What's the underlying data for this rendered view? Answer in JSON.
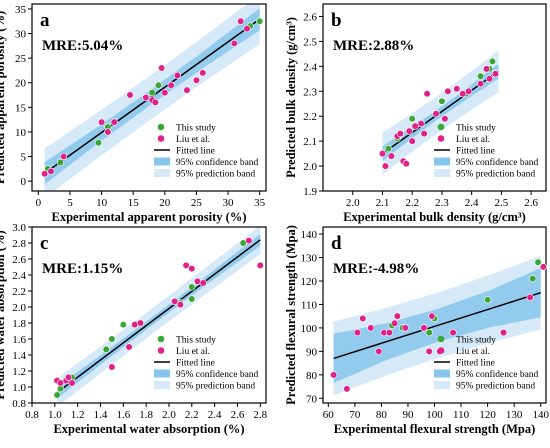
{
  "colors": {
    "this_study": "#3aa636",
    "liu": "#e0218a",
    "fit": "#000000",
    "confidence": "#86c5ec",
    "prediction": "#d6e9f8"
  },
  "legend_labels": [
    "This study",
    "Liu et al.",
    "Fitted line",
    "95% confidence band",
    "95% prediction band"
  ],
  "chart_data": [
    {
      "panel": "a",
      "type": "scatter",
      "mre": "MRE:5.04%",
      "xlabel": "Experimental apparent porosity (%)",
      "ylabel": "Predicted apparent porosity (%)",
      "xlim": [
        -1,
        36
      ],
      "ylim": [
        -2,
        36
      ],
      "xticks": [
        0,
        5,
        10,
        15,
        20,
        25,
        30,
        35
      ],
      "yticks": [
        0,
        5,
        10,
        15,
        20,
        25,
        30,
        35
      ],
      "fit": [
        [
          1,
          1.6
        ],
        [
          35,
          32.9
        ]
      ],
      "confidence_halfwidth": 1.5,
      "prediction_halfwidth": 4.5,
      "series": [
        {
          "name": "This study",
          "color_key": "this_study",
          "points": [
            [
              1.5,
              2.5
            ],
            [
              3.5,
              3.8
            ],
            [
              9.5,
              7.8
            ],
            [
              11,
              11
            ],
            [
              18,
              18
            ],
            [
              19,
              19.5
            ],
            [
              33.5,
              31.5
            ],
            [
              35,
              32.5
            ]
          ]
        },
        {
          "name": "Liu et al.",
          "color_key": "liu",
          "points": [
            [
              1,
              1.5
            ],
            [
              2,
              2
            ],
            [
              4,
              5
            ],
            [
              10,
              12
            ],
            [
              11,
              10
            ],
            [
              12,
              12
            ],
            [
              14.5,
              17.5
            ],
            [
              17,
              17
            ],
            [
              18,
              16.5
            ],
            [
              18.5,
              16
            ],
            [
              19.5,
              23
            ],
            [
              20,
              18
            ],
            [
              21,
              19.5
            ],
            [
              22,
              21.5
            ],
            [
              23.5,
              18.5
            ],
            [
              25,
              20.5
            ],
            [
              26,
              22
            ],
            [
              31,
              28
            ],
            [
              32,
              32.5
            ],
            [
              33,
              31
            ]
          ]
        }
      ]
    },
    {
      "panel": "b",
      "type": "scatter",
      "mre": "MRE:2.88%",
      "xlabel": "Experimental bulk density (g/cm³)",
      "ylabel": "Predicted bulk density (g/cm³)",
      "xlim": [
        1.9,
        2.65
      ],
      "ylim": [
        1.9,
        2.65
      ],
      "xticks": [
        "2.0",
        "2.1",
        "2.2",
        "2.3",
        "2.4",
        "2.5",
        "2.6"
      ],
      "yticks": [
        "1.9",
        "2.0",
        "2.1",
        "2.2",
        "2.3",
        "2.4",
        "2.5",
        "2.6"
      ],
      "fit": [
        [
          2.1,
          2.05
        ],
        [
          2.49,
          2.38
        ]
      ],
      "confidence_halfwidth": 0.02,
      "prediction_halfwidth": 0.075,
      "series": [
        {
          "name": "This study",
          "color_key": "this_study",
          "points": [
            [
              2.12,
              2.07
            ],
            [
              2.15,
              2.11
            ],
            [
              2.2,
              2.19
            ],
            [
              2.3,
              2.26
            ],
            [
              2.38,
              2.29
            ],
            [
              2.43,
              2.36
            ],
            [
              2.46,
              2.39
            ],
            [
              2.47,
              2.42
            ]
          ]
        },
        {
          "name": "Liu et al.",
          "color_key": "liu",
          "points": [
            [
              2.1,
              2.05
            ],
            [
              2.11,
              2.0
            ],
            [
              2.13,
              2.04
            ],
            [
              2.15,
              2.12
            ],
            [
              2.16,
              2.13
            ],
            [
              2.17,
              2.02
            ],
            [
              2.18,
              2.01
            ],
            [
              2.19,
              2.14
            ],
            [
              2.2,
              2.1
            ],
            [
              2.21,
              2.16
            ],
            [
              2.23,
              2.17
            ],
            [
              2.24,
              2.13
            ],
            [
              2.25,
              2.29
            ],
            [
              2.28,
              2.21
            ],
            [
              2.31,
              2.19
            ],
            [
              2.32,
              2.3
            ],
            [
              2.35,
              2.31
            ],
            [
              2.37,
              2.29
            ],
            [
              2.39,
              2.3
            ],
            [
              2.43,
              2.33
            ],
            [
              2.45,
              2.39
            ],
            [
              2.46,
              2.35
            ],
            [
              2.48,
              2.37
            ]
          ]
        }
      ]
    },
    {
      "panel": "c",
      "type": "scatter",
      "mre": "MRE:1.15%",
      "xlabel": "Experimental water absorption (%)",
      "ylabel": "Predicted water absorption (%)",
      "xlim": [
        0.8,
        2.85
      ],
      "ylim": [
        0.8,
        3.0
      ],
      "xticks": [
        "0.8",
        "1.0",
        "1.2",
        "1.4",
        "1.6",
        "1.8",
        "2.0",
        "2.2",
        "2.4",
        "2.6",
        "2.8"
      ],
      "yticks": [
        "0.8",
        "1.0",
        "1.2",
        "1.4",
        "1.6",
        "1.8",
        "2.0",
        "2.2",
        "2.4",
        "2.6",
        "2.8",
        "3.0"
      ],
      "fit": [
        [
          1.02,
          0.93
        ],
        [
          2.8,
          2.84
        ]
      ],
      "confidence_halfwidth": 0.05,
      "prediction_halfwidth": 0.16,
      "series": [
        {
          "name": "This study",
          "color_key": "this_study",
          "points": [
            [
              1.02,
              0.9
            ],
            [
              1.05,
              0.98
            ],
            [
              1.15,
              1.12
            ],
            [
              1.45,
              1.47
            ],
            [
              1.5,
              1.6
            ],
            [
              1.6,
              1.78
            ],
            [
              2.1,
              2.05
            ],
            [
              2.2,
              2.1
            ],
            [
              2.2,
              2.25
            ],
            [
              2.65,
              2.8
            ]
          ]
        },
        {
          "name": "Liu et al.",
          "color_key": "liu",
          "points": [
            [
              1.02,
              1.08
            ],
            [
              1.05,
              1.05
            ],
            [
              1.1,
              1.08
            ],
            [
              1.12,
              1.12
            ],
            [
              1.15,
              1.05
            ],
            [
              1.5,
              1.25
            ],
            [
              1.65,
              1.5
            ],
            [
              1.7,
              1.78
            ],
            [
              1.75,
              1.8
            ],
            [
              2.05,
              2.07
            ],
            [
              2.1,
              2.03
            ],
            [
              2.15,
              2.52
            ],
            [
              2.2,
              2.48
            ],
            [
              2.25,
              2.32
            ],
            [
              2.3,
              2.3
            ],
            [
              2.7,
              2.83
            ],
            [
              2.8,
              2.52
            ]
          ]
        }
      ]
    },
    {
      "panel": "d",
      "type": "scatter",
      "mre": "MRE:-4.98%",
      "xlabel": "Experimental flexural strength (Mpa)",
      "ylabel": "Predicted flexural strength (Mpa)",
      "xlim": [
        58,
        142
      ],
      "ylim": [
        68,
        143
      ],
      "xticks": [
        60,
        70,
        80,
        90,
        100,
        110,
        120,
        130,
        140
      ],
      "yticks": [
        70,
        80,
        90,
        100,
        110,
        120,
        130,
        140
      ],
      "fit": [
        [
          62,
          87
        ],
        [
          140,
          115
        ]
      ],
      "confidence_halfwidth": 7,
      "prediction_halfwidth": 14,
      "series": [
        {
          "name": "This study",
          "color_key": "this_study",
          "points": [
            [
              84,
              101
            ],
            [
              88,
              100
            ],
            [
              98,
              98
            ],
            [
              100,
              104
            ],
            [
              120,
              112
            ],
            [
              137,
              121
            ],
            [
              139,
              128
            ]
          ]
        },
        {
          "name": "Liu et al.",
          "color_key": "liu",
          "points": [
            [
              62,
              80
            ],
            [
              67,
              74
            ],
            [
              71,
              98
            ],
            [
              73,
              104
            ],
            [
              76,
              100
            ],
            [
              79,
              90
            ],
            [
              81,
              98
            ],
            [
              83,
              98
            ],
            [
              85,
              102
            ],
            [
              86,
              105
            ],
            [
              89,
              100
            ],
            [
              96,
              100
            ],
            [
              98,
              90
            ],
            [
              99,
              105
            ],
            [
              102,
              90
            ],
            [
              107,
              98
            ],
            [
              126,
              98
            ],
            [
              136,
              113
            ],
            [
              141,
              126
            ]
          ]
        }
      ]
    }
  ]
}
